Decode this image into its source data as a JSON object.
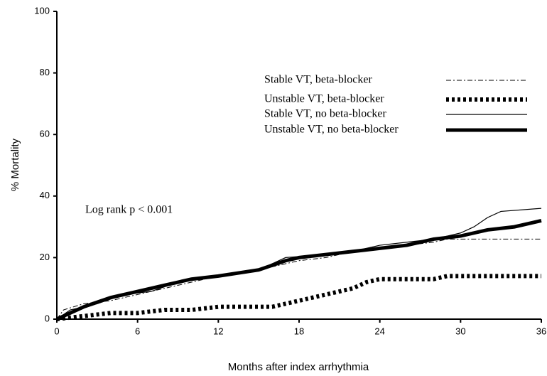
{
  "chart_data": {
    "type": "line",
    "xlabel": "Months after index arrhythmia",
    "ylabel": "% Mortality",
    "annotation": "Log rank p  < 0.001",
    "xlim": [
      0,
      36
    ],
    "ylim": [
      0,
      100
    ],
    "xticks": [
      0,
      6,
      12,
      18,
      24,
      30,
      36
    ],
    "yticks": [
      0,
      20,
      40,
      60,
      80,
      100
    ],
    "series": [
      {
        "name": "Stable VT, beta-blocker",
        "color": "#000000",
        "style": "dash-dot",
        "x": [
          0,
          0.5,
          2,
          4,
          6,
          8,
          10,
          12,
          14,
          16,
          18,
          20,
          22,
          24,
          26,
          28,
          29,
          36
        ],
        "values": [
          0,
          3,
          5,
          6,
          8,
          10,
          12,
          14,
          15,
          17,
          19,
          20,
          22,
          23,
          24,
          25,
          26,
          26
        ]
      },
      {
        "name": "Unstable VT, beta-blocker",
        "color": "#000000",
        "style": "dotted-thick",
        "x": [
          0,
          2,
          4,
          6,
          8,
          10,
          12,
          14,
          16,
          17,
          18,
          20,
          22,
          23,
          24,
          28,
          29,
          36
        ],
        "values": [
          0,
          1,
          2,
          2,
          3,
          3,
          4,
          4,
          4,
          5,
          6,
          8,
          10,
          12,
          13,
          13,
          14,
          14
        ]
      },
      {
        "name": "Stable VT, no beta-blocker",
        "color": "#000000",
        "style": "solid-thin",
        "x": [
          0,
          1,
          3,
          5,
          7,
          9,
          12,
          15,
          17,
          20,
          22,
          24,
          26,
          28,
          30,
          31,
          32,
          33,
          36
        ],
        "values": [
          0,
          3,
          5,
          8,
          9,
          12,
          14,
          16,
          20,
          21,
          22,
          24,
          25,
          26,
          28,
          30,
          33,
          35,
          36
        ]
      },
      {
        "name": "Unstable VT, no beta-blocker",
        "color": "#000000",
        "style": "solid-thick",
        "x": [
          0,
          2,
          4,
          6,
          8,
          10,
          12,
          15,
          17,
          18,
          20,
          22,
          24,
          26,
          28,
          30,
          32,
          34,
          36
        ],
        "values": [
          0,
          4,
          7,
          9,
          11,
          13,
          14,
          16,
          19,
          20,
          21,
          22,
          23,
          24,
          26,
          27,
          29,
          30,
          32
        ]
      }
    ]
  }
}
